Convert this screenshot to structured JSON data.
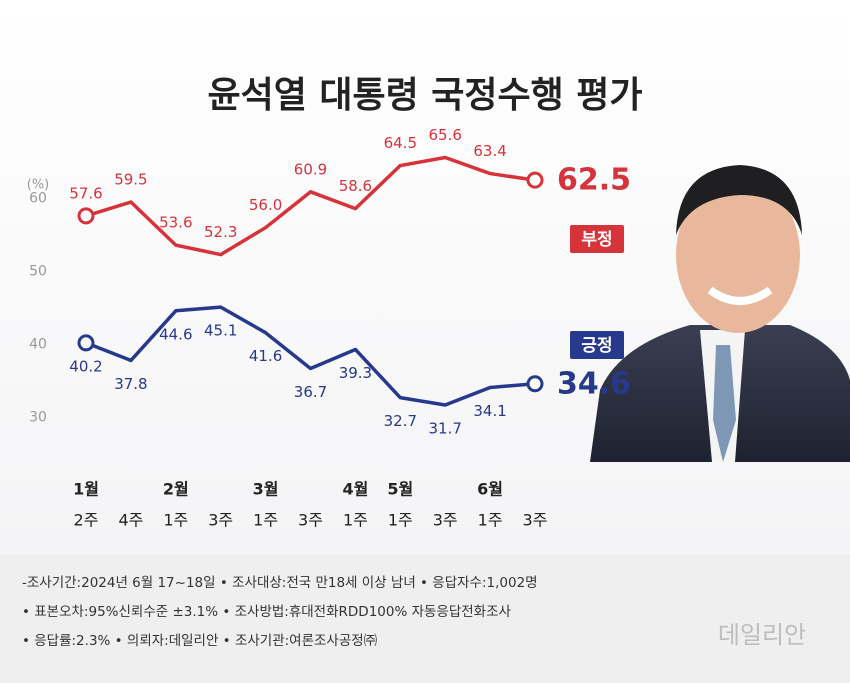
{
  "chart_data": {
    "type": "line",
    "title": "윤석열 대통령 국정수행 평가",
    "y_label": "(%)",
    "months": [
      "1월",
      null,
      "2월",
      null,
      "3월",
      null,
      "4월",
      "5월",
      null,
      "6월",
      null
    ],
    "categories": [
      "2주",
      "4주",
      "1주",
      "3주",
      "1주",
      "3주",
      "1주",
      "1주",
      "3주",
      "1주",
      "3주"
    ],
    "series": [
      {
        "name": "부정",
        "color": "#d7333b",
        "values": [
          57.6,
          59.5,
          53.6,
          52.3,
          56.0,
          60.9,
          58.6,
          64.5,
          65.6,
          63.4,
          62.5
        ],
        "value_labels": [
          "57.6",
          "59.5",
          "53.6",
          "52.3",
          "56.0",
          "60.9",
          "58.6",
          "64.5",
          "65.6",
          "63.4",
          "62.5"
        ]
      },
      {
        "name": "긍정",
        "color": "#26398c",
        "values": [
          40.2,
          37.8,
          44.6,
          45.1,
          41.6,
          36.7,
          39.3,
          32.7,
          31.7,
          34.1,
          34.6
        ],
        "value_labels": [
          "40.2",
          "37.8",
          "44.6",
          "45.1",
          "41.6",
          "36.7",
          "39.3",
          "32.7",
          "31.7",
          "34.1",
          "34.6"
        ]
      }
    ],
    "ylim": [
      26.9,
      68
    ],
    "yticks": [
      30,
      40,
      50,
      60
    ],
    "notes": [
      "-조사기간:2024년 6월 17~18일  • 조사대상:전국 만18세 이상 남녀  • 응답자수:1,002명",
      "• 표본오차:95%신뢰수준 ±3.1%  • 조사방법:휴대전화RDD100% 자동응답전화조사",
      "• 응답률:2.3%  • 의뢰자:데일리안  • 조사기관:여론조사공정㈜"
    ],
    "watermark": "데일리안"
  }
}
